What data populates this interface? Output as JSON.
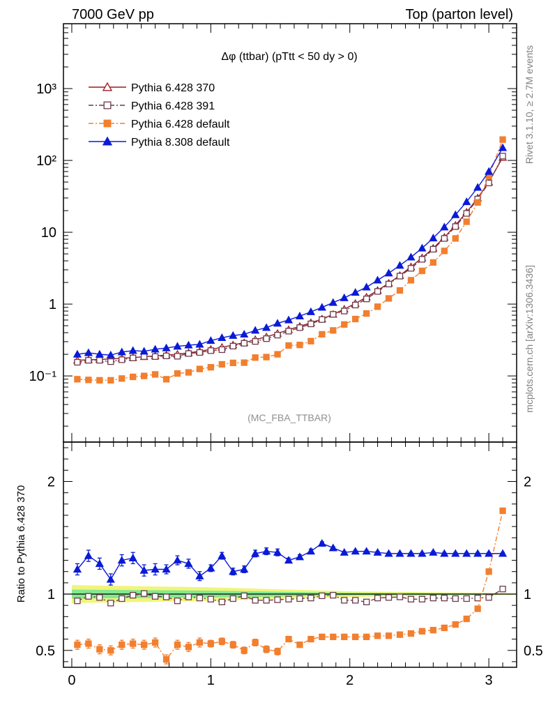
{
  "header": {
    "left": "7000 GeV pp",
    "right": "Top (parton level)"
  },
  "side_labels": {
    "rivet": "Rivet 3.1.10, ≥ 2.7M events",
    "mcplots": "mcplots.cern.ch [arXiv:1306.3436]"
  },
  "chart_data": [
    {
      "type": "line",
      "title": "Δφ (ttbar) (pTtt < 50 dy > 0)",
      "analysis_label": "(MC_FBA_TTBAR)",
      "xlabel": "",
      "ylabel": "",
      "y_scale": "log",
      "xlim": [
        -0.06,
        3.2
      ],
      "ylim": [
        0.012,
        8000
      ],
      "y_ticks": [
        {
          "value": 0.1,
          "label": "10⁻¹"
        },
        {
          "value": 1,
          "label": "1"
        },
        {
          "value": 10,
          "label": "10"
        },
        {
          "value": 100,
          "label": "10²"
        },
        {
          "value": 1000,
          "label": "10³"
        }
      ],
      "legend_position": "top-left",
      "x": [
        0.04,
        0.12,
        0.2,
        0.28,
        0.36,
        0.44,
        0.52,
        0.6,
        0.68,
        0.76,
        0.84,
        0.92,
        1.0,
        1.08,
        1.16,
        1.24,
        1.32,
        1.4,
        1.48,
        1.56,
        1.64,
        1.72,
        1.8,
        1.88,
        1.96,
        2.04,
        2.12,
        2.2,
        2.28,
        2.36,
        2.44,
        2.52,
        2.6,
        2.68,
        2.76,
        2.84,
        2.92,
        3.0,
        3.1
      ],
      "series": [
        {
          "name": "Pythia 6.428 370",
          "color": "#9b1c24",
          "marker": "triangle-open",
          "line": "solid",
          "values": [
            0.165,
            0.168,
            0.17,
            0.172,
            0.176,
            0.18,
            0.185,
            0.19,
            0.195,
            0.2,
            0.21,
            0.22,
            0.235,
            0.25,
            0.27,
            0.29,
            0.32,
            0.35,
            0.39,
            0.44,
            0.49,
            0.55,
            0.62,
            0.72,
            0.85,
            1.02,
            1.25,
            1.55,
            1.95,
            2.5,
            3.3,
            4.4,
            6.0,
            8.5,
            12.5,
            19.0,
            30.0,
            50.0,
            110.0
          ]
        },
        {
          "name": "Pythia 6.428 391",
          "color": "#6b3a4a",
          "marker": "square-open",
          "line": "dashdot",
          "values": [
            0.155,
            0.165,
            0.165,
            0.158,
            0.168,
            0.178,
            0.186,
            0.186,
            0.19,
            0.188,
            0.205,
            0.212,
            0.225,
            0.232,
            0.26,
            0.285,
            0.302,
            0.33,
            0.37,
            0.42,
            0.47,
            0.53,
            0.61,
            0.72,
            0.8,
            0.97,
            1.18,
            1.5,
            1.9,
            2.45,
            3.15,
            4.2,
            5.8,
            8.2,
            12.0,
            18.3,
            29.0,
            48.5,
            115.0
          ]
        },
        {
          "name": "Pythia 6.428 default",
          "color": "#f27f2e",
          "marker": "square-filled",
          "line": "dashdot",
          "values": [
            0.09,
            0.088,
            0.087,
            0.087,
            0.092,
            0.097,
            0.1,
            0.105,
            0.09,
            0.108,
            0.112,
            0.125,
            0.132,
            0.145,
            0.152,
            0.153,
            0.18,
            0.183,
            0.2,
            0.265,
            0.27,
            0.305,
            0.38,
            0.43,
            0.52,
            0.62,
            0.74,
            0.92,
            1.2,
            1.55,
            2.15,
            2.9,
            3.8,
            5.5,
            8.2,
            14.0,
            26.0,
            60.0,
            195.0
          ]
        },
        {
          "name": "Pythia 8.308 default",
          "color": "#0a1ad6",
          "marker": "triangle-filled",
          "line": "solid",
          "values": [
            0.2,
            0.21,
            0.2,
            0.195,
            0.215,
            0.225,
            0.22,
            0.235,
            0.245,
            0.258,
            0.268,
            0.275,
            0.31,
            0.34,
            0.365,
            0.38,
            0.43,
            0.47,
            0.54,
            0.6,
            0.68,
            0.78,
            0.9,
            1.05,
            1.22,
            1.45,
            1.72,
            2.15,
            2.7,
            3.45,
            4.5,
            6.0,
            8.3,
            11.8,
            17.5,
            26.5,
            42.0,
            70.0,
            150.0
          ]
        }
      ]
    },
    {
      "type": "line",
      "title": "",
      "xlabel": "",
      "ylabel": "Ratio to Pythia 6.428 370",
      "xlim": [
        -0.06,
        3.2
      ],
      "ylim": [
        0.35,
        2.35
      ],
      "x_ticks": [
        0,
        1,
        2,
        3
      ],
      "y_ticks": [
        0.5,
        1,
        2
      ],
      "reference_line": 1,
      "bands": [
        {
          "color": "#f0f57a",
          "x": [
            0.0,
            1.0,
            2.0,
            3.0,
            3.2
          ],
          "low": [
            0.92,
            0.94,
            0.975,
            0.99,
            0.995
          ],
          "high": [
            1.08,
            1.06,
            1.025,
            1.01,
            1.005
          ]
        },
        {
          "color": "#85e890",
          "x": [
            0.0,
            1.0,
            2.0,
            3.0,
            3.2
          ],
          "low": [
            0.96,
            0.97,
            0.988,
            0.995,
            0.998
          ],
          "high": [
            1.04,
            1.03,
            1.012,
            1.005,
            1.002
          ]
        }
      ],
      "x": [
        0.04,
        0.12,
        0.2,
        0.28,
        0.36,
        0.44,
        0.52,
        0.6,
        0.68,
        0.76,
        0.84,
        0.92,
        1.0,
        1.08,
        1.16,
        1.24,
        1.32,
        1.4,
        1.48,
        1.56,
        1.64,
        1.72,
        1.8,
        1.88,
        1.96,
        2.04,
        2.12,
        2.2,
        2.28,
        2.36,
        2.44,
        2.52,
        2.6,
        2.68,
        2.76,
        2.84,
        2.92,
        3.0,
        3.1
      ],
      "series": [
        {
          "name": "Pythia 6.428 391",
          "color": "#6b3a4a",
          "marker": "square-open",
          "line": "dashdot",
          "values": [
            0.94,
            0.98,
            0.97,
            0.92,
            0.96,
            0.99,
            1.005,
            0.98,
            0.975,
            0.94,
            0.975,
            0.965,
            0.955,
            0.93,
            0.96,
            0.985,
            0.945,
            0.945,
            0.95,
            0.955,
            0.96,
            0.965,
            0.985,
            0.99,
            0.945,
            0.945,
            0.93,
            0.965,
            0.97,
            0.975,
            0.955,
            0.955,
            0.965,
            0.965,
            0.96,
            0.96,
            0.965,
            0.97,
            1.045
          ]
        },
        {
          "name": "Pythia 6.428 default",
          "color": "#f27f2e",
          "marker": "square-filled",
          "line": "dashdot",
          "errors": [
            0.04,
            0.04,
            0.04,
            0.04,
            0.04,
            0.04,
            0.04,
            0.04,
            0.04,
            0.04,
            0.04,
            0.04,
            0.03,
            0.03,
            0.03,
            0.03,
            0.03,
            0.03,
            0.03,
            0.02,
            0.02,
            0.02,
            0.015,
            0.01,
            0.01,
            0.01,
            0.01,
            0.01,
            0.01,
            0.01,
            0.01,
            0.01,
            0.01,
            0.01,
            0.01,
            0.01,
            0.01,
            0.01,
            0.01
          ],
          "values": [
            0.55,
            0.56,
            0.51,
            0.5,
            0.55,
            0.56,
            0.55,
            0.57,
            0.42,
            0.55,
            0.53,
            0.57,
            0.56,
            0.58,
            0.55,
            0.5,
            0.57,
            0.51,
            0.49,
            0.6,
            0.55,
            0.6,
            0.62,
            0.62,
            0.62,
            0.62,
            0.62,
            0.63,
            0.63,
            0.64,
            0.65,
            0.67,
            0.68,
            0.7,
            0.73,
            0.78,
            0.87,
            1.2,
            1.74
          ]
        },
        {
          "name": "Pythia 8.308 default",
          "color": "#0a1ad6",
          "marker": "triangle-filled",
          "line": "solid",
          "errors": [
            0.05,
            0.05,
            0.05,
            0.05,
            0.05,
            0.05,
            0.05,
            0.05,
            0.04,
            0.04,
            0.04,
            0.04,
            0.03,
            0.03,
            0.03,
            0.03,
            0.03,
            0.03,
            0.03,
            0.02,
            0.02,
            0.02,
            0.015,
            0.01,
            0.01,
            0.01,
            0.01,
            0.01,
            0.01,
            0.01,
            0.01,
            0.01,
            0.01,
            0.01,
            0.01,
            0.01,
            0.01,
            0.01,
            0.01
          ],
          "values": [
            1.22,
            1.34,
            1.27,
            1.13,
            1.3,
            1.32,
            1.21,
            1.22,
            1.22,
            1.3,
            1.27,
            1.16,
            1.23,
            1.34,
            1.2,
            1.22,
            1.36,
            1.38,
            1.37,
            1.3,
            1.33,
            1.38,
            1.45,
            1.41,
            1.37,
            1.38,
            1.38,
            1.37,
            1.36,
            1.36,
            1.36,
            1.36,
            1.37,
            1.36,
            1.36,
            1.36,
            1.36,
            1.36,
            1.36
          ]
        }
      ]
    }
  ]
}
